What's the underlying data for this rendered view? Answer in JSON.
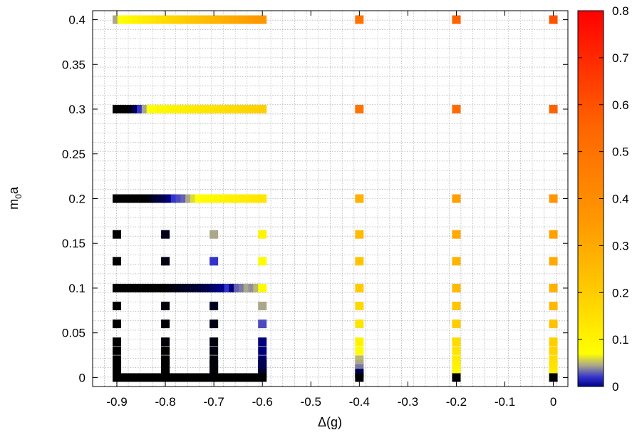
{
  "chart_data": {
    "type": "heatmap",
    "title": "",
    "xlabel": "Δ(g)",
    "ylabel_main": "m",
    "ylabel_sub": "0",
    "ylabel_tail": "a",
    "xlim": [
      -0.95,
      0.03
    ],
    "ylim": [
      -0.01,
      0.41
    ],
    "x_ticks": [
      -0.9,
      -0.8,
      -0.7,
      -0.6,
      -0.5,
      -0.4,
      -0.3,
      -0.2,
      -0.1,
      0
    ],
    "x_tick_labels": [
      "-0.9",
      "-0.8",
      "-0.7",
      "-0.6",
      "-0.5",
      "-0.4",
      "-0.3",
      "-0.2",
      "-0.1",
      "0"
    ],
    "y_ticks": [
      0,
      0.05,
      0.1,
      0.15,
      0.2,
      0.25,
      0.3,
      0.35,
      0.4
    ],
    "y_tick_labels": [
      "0",
      "0.05",
      "0.1",
      "0.15",
      "0.2",
      "0.25",
      "0.3",
      "0.35",
      "0.4"
    ],
    "grid": true,
    "colorbar": {
      "range": [
        0,
        0.8
      ],
      "ticks": [
        0,
        0.1,
        0.2,
        0.3,
        0.4,
        0.5,
        0.6,
        0.7,
        0.8
      ],
      "tick_labels": [
        "0",
        "0.1",
        "0.2",
        "0.3",
        "0.4",
        "0.5",
        "0.6",
        "0.7",
        "0.8"
      ],
      "stops": [
        [
          0.0,
          "#00008b"
        ],
        [
          0.02,
          "#3333cc"
        ],
        [
          0.045,
          "#aaa78a"
        ],
        [
          0.07,
          "#ffff00"
        ],
        [
          0.2,
          "#ffcc00"
        ],
        [
          0.35,
          "#ff9900"
        ],
        [
          0.55,
          "#ff6600"
        ],
        [
          0.8,
          "#ff0000"
        ]
      ]
    },
    "rows": [
      {
        "y": 0.4,
        "points": [
          [
            -0.9,
            0.045
          ],
          [
            -0.89,
            0.07
          ],
          [
            -0.88,
            0.08
          ],
          [
            -0.87,
            0.09
          ],
          [
            -0.86,
            0.1
          ],
          [
            -0.85,
            0.11
          ],
          [
            -0.84,
            0.12
          ],
          [
            -0.83,
            0.13
          ],
          [
            -0.82,
            0.14
          ],
          [
            -0.81,
            0.15
          ],
          [
            -0.8,
            0.16
          ],
          [
            -0.79,
            0.17
          ],
          [
            -0.78,
            0.18
          ],
          [
            -0.77,
            0.19
          ],
          [
            -0.76,
            0.2
          ],
          [
            -0.75,
            0.21
          ],
          [
            -0.74,
            0.22
          ],
          [
            -0.73,
            0.23
          ],
          [
            -0.72,
            0.24
          ],
          [
            -0.71,
            0.25
          ],
          [
            -0.7,
            0.26
          ],
          [
            -0.69,
            0.27
          ],
          [
            -0.68,
            0.28
          ],
          [
            -0.67,
            0.29
          ],
          [
            -0.66,
            0.3
          ],
          [
            -0.65,
            0.31
          ],
          [
            -0.64,
            0.32
          ],
          [
            -0.63,
            0.33
          ],
          [
            -0.62,
            0.34
          ],
          [
            -0.61,
            0.35
          ],
          [
            -0.6,
            0.36
          ],
          [
            -0.4,
            0.5
          ],
          [
            -0.2,
            0.56
          ],
          [
            0.0,
            0.6
          ]
        ]
      },
      {
        "y": 0.3,
        "points": [
          [
            -0.9,
            0.0
          ],
          [
            -0.89,
            0.0
          ],
          [
            -0.88,
            0.0
          ],
          [
            -0.87,
            0.002
          ],
          [
            -0.86,
            0.01
          ],
          [
            -0.85,
            0.02
          ],
          [
            -0.84,
            0.045
          ],
          [
            -0.83,
            0.07
          ],
          [
            -0.82,
            0.08
          ],
          [
            -0.81,
            0.085
          ],
          [
            -0.8,
            0.09
          ],
          [
            -0.79,
            0.095
          ],
          [
            -0.78,
            0.1
          ],
          [
            -0.77,
            0.105
          ],
          [
            -0.76,
            0.11
          ],
          [
            -0.75,
            0.115
          ],
          [
            -0.74,
            0.12
          ],
          [
            -0.73,
            0.125
          ],
          [
            -0.72,
            0.13
          ],
          [
            -0.71,
            0.135
          ],
          [
            -0.7,
            0.14
          ],
          [
            -0.69,
            0.145
          ],
          [
            -0.68,
            0.15
          ],
          [
            -0.67,
            0.155
          ],
          [
            -0.66,
            0.16
          ],
          [
            -0.65,
            0.165
          ],
          [
            -0.64,
            0.17
          ],
          [
            -0.63,
            0.175
          ],
          [
            -0.62,
            0.18
          ],
          [
            -0.61,
            0.185
          ],
          [
            -0.6,
            0.19
          ],
          [
            -0.4,
            0.5
          ],
          [
            -0.2,
            0.53
          ],
          [
            0.0,
            0.56
          ]
        ]
      },
      {
        "y": 0.2,
        "points": [
          [
            -0.9,
            0.0
          ],
          [
            -0.89,
            0.0
          ],
          [
            -0.88,
            0.0
          ],
          [
            -0.87,
            0.0
          ],
          [
            -0.86,
            0.0
          ],
          [
            -0.85,
            0.0
          ],
          [
            -0.84,
            0.0
          ],
          [
            -0.83,
            0.002
          ],
          [
            -0.82,
            0.005
          ],
          [
            -0.81,
            0.008
          ],
          [
            -0.8,
            0.01
          ],
          [
            -0.79,
            0.015
          ],
          [
            -0.78,
            0.02
          ],
          [
            -0.77,
            0.025
          ],
          [
            -0.76,
            0.03
          ],
          [
            -0.75,
            0.045
          ],
          [
            -0.74,
            0.06
          ],
          [
            -0.73,
            0.07
          ],
          [
            -0.72,
            0.075
          ],
          [
            -0.71,
            0.08
          ],
          [
            -0.7,
            0.085
          ],
          [
            -0.69,
            0.09
          ],
          [
            -0.68,
            0.095
          ],
          [
            -0.67,
            0.1
          ],
          [
            -0.66,
            0.105
          ],
          [
            -0.65,
            0.11
          ],
          [
            -0.64,
            0.115
          ],
          [
            -0.63,
            0.12
          ],
          [
            -0.62,
            0.125
          ],
          [
            -0.61,
            0.13
          ],
          [
            -0.6,
            0.135
          ],
          [
            -0.4,
            0.28
          ],
          [
            -0.2,
            0.33
          ],
          [
            0.0,
            0.36
          ]
        ]
      },
      {
        "y": 0.16,
        "points": [
          [
            -0.9,
            0.0
          ],
          [
            -0.8,
            0.003
          ],
          [
            -0.7,
            0.045
          ],
          [
            -0.6,
            0.1
          ],
          [
            -0.4,
            0.25
          ],
          [
            -0.2,
            0.3
          ],
          [
            0.0,
            0.33
          ]
        ]
      },
      {
        "y": 0.13,
        "points": [
          [
            -0.9,
            0.0
          ],
          [
            -0.8,
            0.002
          ],
          [
            -0.7,
            0.02
          ],
          [
            -0.6,
            0.08
          ],
          [
            -0.4,
            0.22
          ],
          [
            -0.2,
            0.27
          ],
          [
            0.0,
            0.3
          ]
        ]
      },
      {
        "y": 0.1,
        "points": [
          [
            -0.9,
            0.0
          ],
          [
            -0.89,
            0.0
          ],
          [
            -0.88,
            0.0
          ],
          [
            -0.87,
            0.0
          ],
          [
            -0.86,
            0.0
          ],
          [
            -0.85,
            0.0
          ],
          [
            -0.84,
            0.0
          ],
          [
            -0.83,
            0.0
          ],
          [
            -0.82,
            0.0
          ],
          [
            -0.81,
            0.0
          ],
          [
            -0.8,
            0.0
          ],
          [
            -0.79,
            0.001
          ],
          [
            -0.78,
            0.002
          ],
          [
            -0.77,
            0.003
          ],
          [
            -0.76,
            0.004
          ],
          [
            -0.75,
            0.005
          ],
          [
            -0.74,
            0.006
          ],
          [
            -0.73,
            0.007
          ],
          [
            -0.72,
            0.008
          ],
          [
            -0.71,
            0.01
          ],
          [
            -0.7,
            0.012
          ],
          [
            -0.69,
            0.015
          ],
          [
            -0.68,
            0.018
          ],
          [
            -0.67,
            0.02
          ],
          [
            -0.66,
            0.015
          ],
          [
            -0.65,
            0.03
          ],
          [
            -0.64,
            0.035
          ],
          [
            -0.63,
            0.045
          ],
          [
            -0.62,
            0.04
          ],
          [
            -0.61,
            0.05
          ],
          [
            -0.6,
            0.08
          ],
          [
            -0.4,
            0.2
          ],
          [
            -0.2,
            0.25
          ],
          [
            0.0,
            0.28
          ]
        ]
      },
      {
        "y": 0.08,
        "points": [
          [
            -0.9,
            0.0
          ],
          [
            -0.8,
            0.001
          ],
          [
            -0.7,
            0.004
          ],
          [
            -0.6,
            0.045
          ],
          [
            -0.4,
            0.17
          ],
          [
            -0.2,
            0.22
          ],
          [
            0.0,
            0.26
          ]
        ]
      },
      {
        "y": 0.06,
        "points": [
          [
            -0.9,
            0.0
          ],
          [
            -0.8,
            0.001
          ],
          [
            -0.7,
            0.003
          ],
          [
            -0.6,
            0.025
          ],
          [
            -0.4,
            0.14
          ],
          [
            -0.2,
            0.2
          ],
          [
            0.0,
            0.23
          ]
        ]
      },
      {
        "y": 0.04,
        "points": [
          [
            -0.9,
            0.0
          ],
          [
            -0.8,
            0.001
          ],
          [
            -0.7,
            0.002
          ],
          [
            -0.6,
            0.015
          ],
          [
            -0.4,
            0.1
          ],
          [
            -0.2,
            0.16
          ],
          [
            0.0,
            0.19
          ]
        ]
      },
      {
        "y": 0.03,
        "points": [
          [
            -0.9,
            0.0
          ],
          [
            -0.8,
            0.0
          ],
          [
            -0.7,
            0.002
          ],
          [
            -0.6,
            0.015
          ],
          [
            -0.4,
            0.08
          ],
          [
            -0.2,
            0.14
          ],
          [
            0.0,
            0.18
          ]
        ]
      },
      {
        "y": 0.02,
        "points": [
          [
            -0.9,
            0.0
          ],
          [
            -0.8,
            0.0
          ],
          [
            -0.7,
            0.001
          ],
          [
            -0.6,
            0.012
          ],
          [
            -0.4,
            0.05
          ],
          [
            -0.2,
            0.12
          ],
          [
            0.0,
            0.16
          ]
        ]
      },
      {
        "y": 0.015,
        "points": [
          [
            -0.9,
            0.0
          ],
          [
            -0.8,
            0.0
          ],
          [
            -0.7,
            0.001
          ],
          [
            -0.6,
            0.01
          ],
          [
            -0.4,
            0.045
          ],
          [
            -0.2,
            0.11
          ],
          [
            0.0,
            0.15
          ]
        ]
      },
      {
        "y": 0.01,
        "points": [
          [
            -0.9,
            0.0
          ],
          [
            -0.8,
            0.0
          ],
          [
            -0.7,
            0.001
          ],
          [
            -0.6,
            0.01
          ],
          [
            -0.4,
            0.035
          ],
          [
            -0.2,
            0.1
          ],
          [
            0.0,
            0.14
          ]
        ]
      },
      {
        "y": 0.005,
        "points": [
          [
            -0.9,
            0.0
          ],
          [
            -0.8,
            0.0
          ],
          [
            -0.7,
            0.001
          ],
          [
            -0.6,
            0.005
          ],
          [
            -0.4,
            0.01
          ],
          [
            -0.2,
            0.08
          ],
          [
            0.0,
            0.12
          ]
        ]
      },
      {
        "y": 0.0,
        "points": [
          [
            -0.9,
            0.0
          ],
          [
            -0.89,
            0.0
          ],
          [
            -0.88,
            0.0
          ],
          [
            -0.87,
            0.0
          ],
          [
            -0.86,
            0.0
          ],
          [
            -0.85,
            0.0
          ],
          [
            -0.84,
            0.0
          ],
          [
            -0.83,
            0.0
          ],
          [
            -0.82,
            0.0
          ],
          [
            -0.81,
            0.0
          ],
          [
            -0.8,
            0.0
          ],
          [
            -0.79,
            0.0
          ],
          [
            -0.78,
            0.0
          ],
          [
            -0.77,
            0.0
          ],
          [
            -0.76,
            0.0
          ],
          [
            -0.75,
            0.0
          ],
          [
            -0.74,
            0.0
          ],
          [
            -0.73,
            0.0
          ],
          [
            -0.72,
            0.0
          ],
          [
            -0.71,
            0.0
          ],
          [
            -0.7,
            0.0
          ],
          [
            -0.69,
            0.0
          ],
          [
            -0.68,
            0.0
          ],
          [
            -0.67,
            0.0
          ],
          [
            -0.66,
            0.0
          ],
          [
            -0.65,
            0.0
          ],
          [
            -0.64,
            0.0
          ],
          [
            -0.63,
            0.0
          ],
          [
            -0.62,
            0.0
          ],
          [
            -0.61,
            0.0
          ],
          [
            -0.6,
            0.0
          ],
          [
            -0.4,
            0.0
          ],
          [
            -0.2,
            0.0
          ],
          [
            0.0,
            0.0
          ]
        ]
      }
    ]
  }
}
